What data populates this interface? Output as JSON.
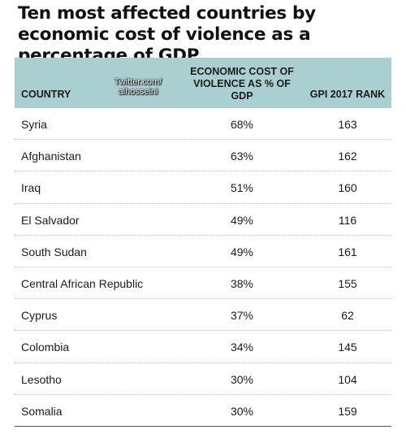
{
  "title": "Ten most affected countries by economic cost of violence as a percentage of GDP",
  "watermark": "Twitter.com/ alhosseini",
  "headers": {
    "country": "COUNTRY",
    "cost": "ECONOMIC COST OF VIOLENCE AS % OF GDP",
    "rank": "GPI 2017 RANK"
  },
  "rows": [
    {
      "country": "Syria",
      "cost": "68%",
      "rank": "163"
    },
    {
      "country": "Afghanistan",
      "cost": "63%",
      "rank": "162"
    },
    {
      "country": "Iraq",
      "cost": "51%",
      "rank": "160"
    },
    {
      "country": "El Salvador",
      "cost": "49%",
      "rank": "116"
    },
    {
      "country": "South Sudan",
      "cost": "49%",
      "rank": "161"
    },
    {
      "country": "Central African Republic",
      "cost": "38%",
      "rank": "155"
    },
    {
      "country": "Cyprus",
      "cost": "37%",
      "rank": "62"
    },
    {
      "country": "Colombia",
      "cost": "34%",
      "rank": "145"
    },
    {
      "country": "Lesotho",
      "cost": "30%",
      "rank": "104"
    },
    {
      "country": "Somalia",
      "cost": "30%",
      "rank": "159"
    }
  ],
  "colors": {
    "header_background": "#a9cfd0"
  }
}
